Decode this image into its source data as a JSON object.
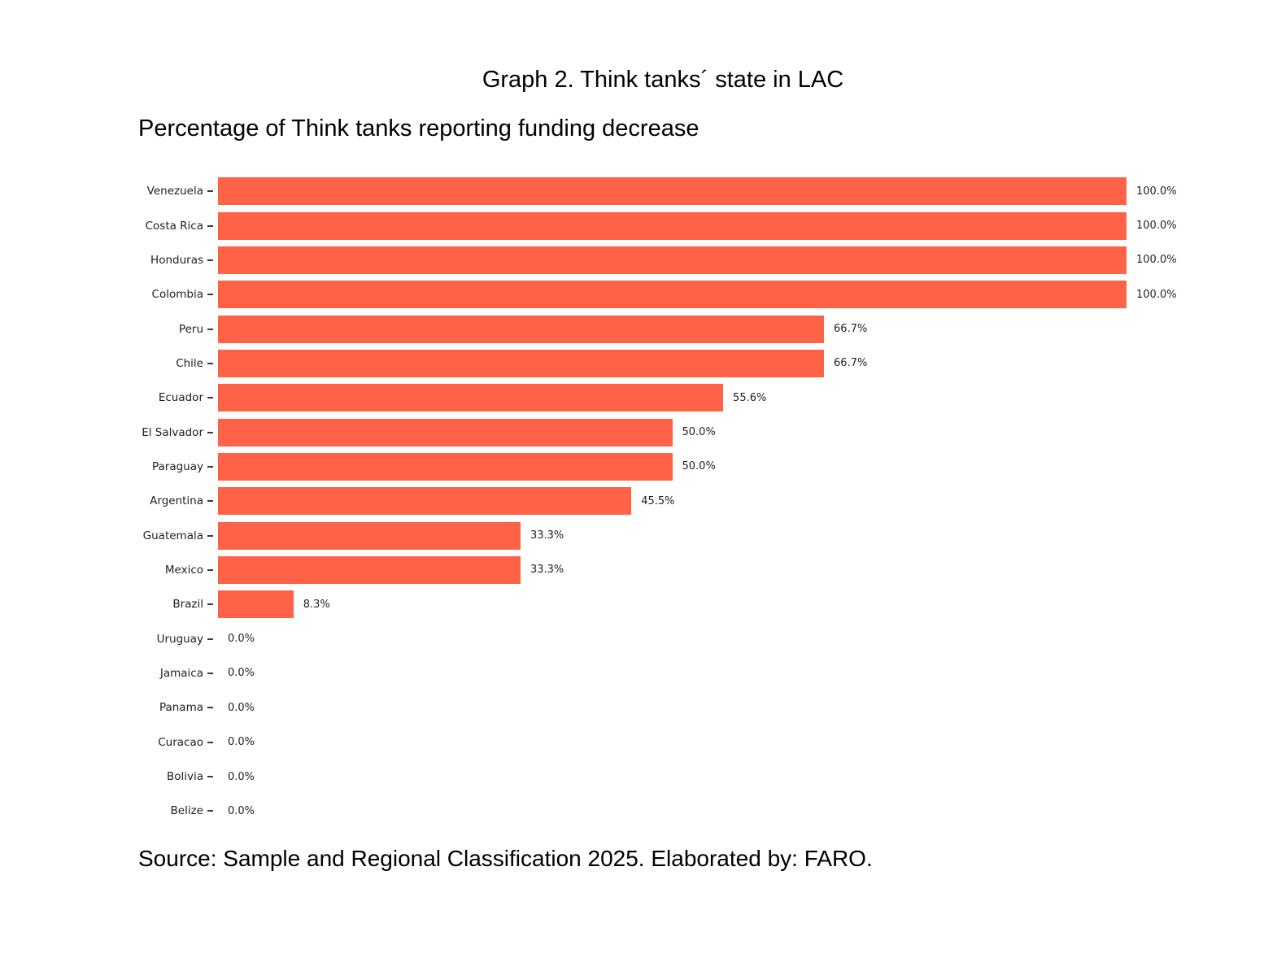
{
  "chart_data": {
    "type": "bar",
    "orientation": "horizontal",
    "title": "Graph 2. Think tanks´ state in LAC",
    "subtitle": "Percentage of Think tanks reporting funding decrease",
    "source": "Source: Sample and Regional Classification 2025. Elaborated by: FARO.",
    "categories": [
      "Venezuela",
      "Costa Rica",
      "Honduras",
      "Colombia",
      "Peru",
      "Chile",
      "Ecuador",
      "El Salvador",
      "Paraguay",
      "Argentina",
      "Guatemala",
      "Mexico",
      "Brazil",
      "Uruguay",
      "Jamaica",
      "Panama",
      "Curacao",
      "Bolivia",
      "Belize"
    ],
    "values": [
      100.0,
      100.0,
      100.0,
      100.0,
      66.7,
      66.7,
      55.6,
      50.0,
      50.0,
      45.5,
      33.3,
      33.3,
      8.3,
      0.0,
      0.0,
      0.0,
      0.0,
      0.0,
      0.0
    ],
    "value_labels": [
      "100.0%",
      "100.0%",
      "100.0%",
      "100.0%",
      "66.7%",
      "66.7%",
      "55.6%",
      "50.0%",
      "50.0%",
      "45.5%",
      "33.3%",
      "33.3%",
      "8.3%",
      "0.0%",
      "0.0%",
      "0.0%",
      "0.0%",
      "0.0%",
      "0.0%"
    ],
    "xlim": [
      0,
      100
    ],
    "xlabel": "",
    "ylabel": "",
    "grid": "off",
    "legend": "none",
    "bar_color": "#ff6347",
    "text_color": "#1f1f1f",
    "background_color": "#ffffff"
  }
}
